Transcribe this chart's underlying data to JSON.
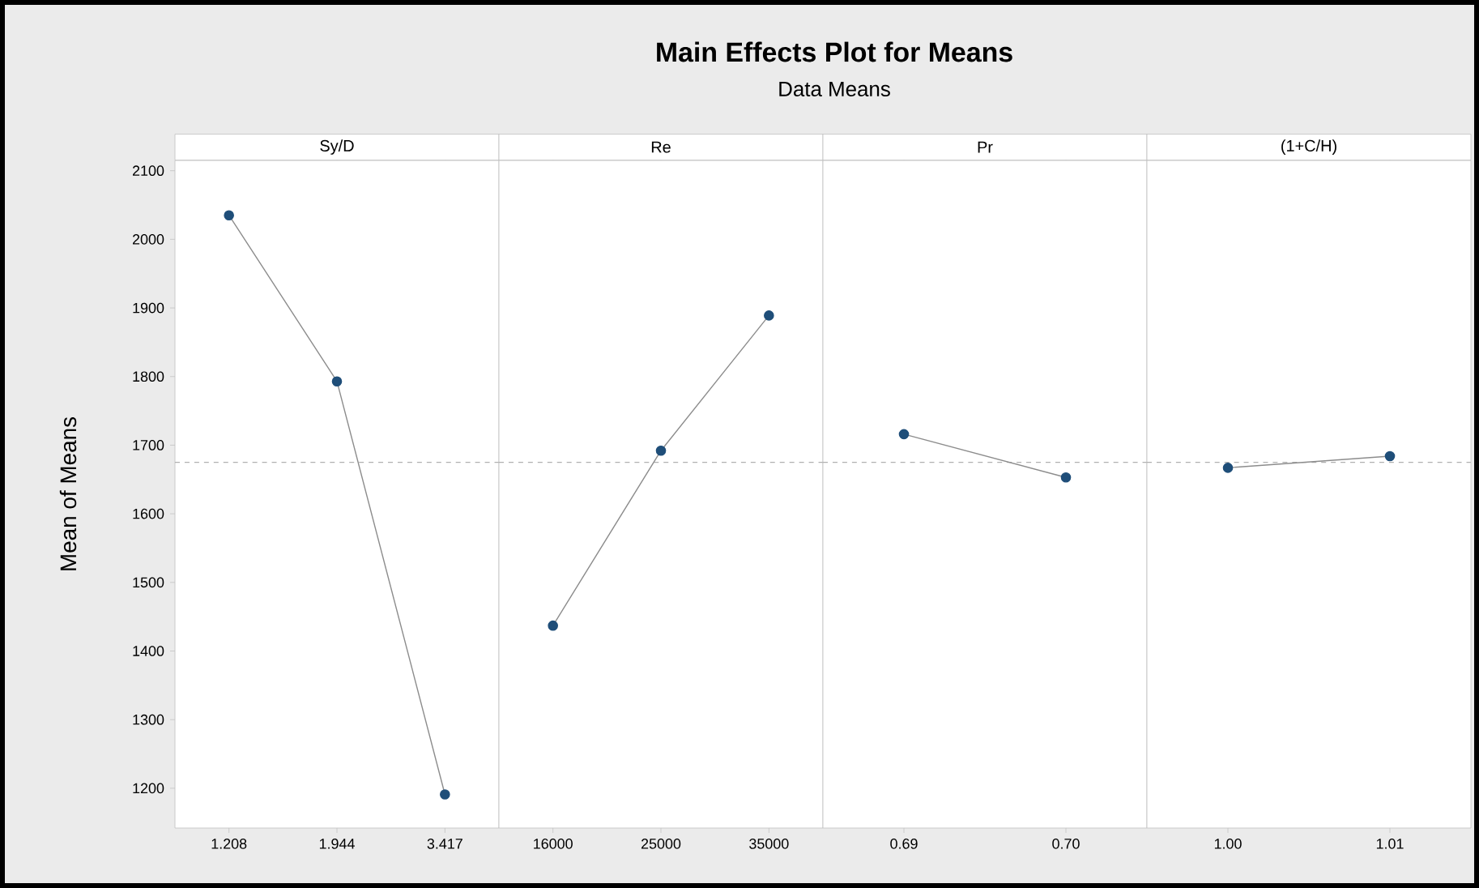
{
  "chart_data": [
    {
      "type": "line",
      "ylabel": "Mean of Means",
      "xlabel": "Sy/D",
      "categories": [
        "1.208",
        "1.944",
        "3.417"
      ],
      "series": [
        {
          "color": "#1f4e79",
          "values": [
            2035,
            1793,
            1191
          ]
        }
      ],
      "ylim": [
        1142,
        2115
      ],
      "yticks": [
        1200,
        1300,
        1400,
        1500,
        1600,
        1700,
        1800,
        1900,
        2000,
        2100
      ],
      "marker": "circle",
      "grid": false,
      "ref_lines": [
        {
          "axis": "y",
          "value": 1675,
          "color": "#b0b0b0",
          "line_style": "dashed"
        }
      ]
    },
    {
      "type": "line",
      "xlabel": "Re",
      "categories": [
        "16000",
        "25000",
        "35000"
      ],
      "series": [
        {
          "color": "#1f4e79",
          "values": [
            1437,
            1692,
            1889
          ]
        }
      ],
      "ylim": [
        1142,
        2115
      ],
      "tick_labels": "x",
      "marker": "circle",
      "grid": false,
      "ref_lines": [
        {
          "axis": "y",
          "value": 1675,
          "color": "#b0b0b0",
          "line_style": "dashed"
        }
      ]
    },
    {
      "type": "line",
      "xlabel": "Pr",
      "categories": [
        "0.69",
        "0.70"
      ],
      "series": [
        {
          "color": "#1f4e79",
          "values": [
            1716,
            1653
          ]
        }
      ],
      "ylim": [
        1142,
        2115
      ],
      "tick_labels": "x",
      "marker": "circle",
      "grid": false,
      "ref_lines": [
        {
          "axis": "y",
          "value": 1675,
          "color": "#b0b0b0",
          "line_style": "dashed"
        }
      ]
    },
    {
      "type": "line",
      "xlabel": "(1+C/H)",
      "categories": [
        "1.00",
        "1.01"
      ],
      "series": [
        {
          "color": "#1f4e79",
          "values": [
            1667,
            1684
          ]
        }
      ],
      "ylim": [
        1142,
        2115
      ],
      "tick_labels": "x",
      "marker": "circle",
      "grid": false,
      "ref_lines": [
        {
          "axis": "y",
          "value": 1675,
          "color": "#b0b0b0",
          "line_style": "dashed"
        }
      ]
    },
    {
      "type": "other",
      "title": "Main Effects Plot for Means",
      "subtitle": "Data Means"
    }
  ]
}
